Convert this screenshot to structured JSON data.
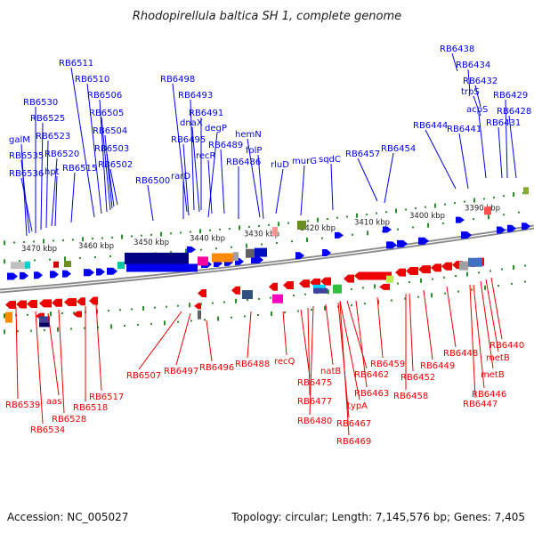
{
  "title": "Rhodopirellula baltica SH 1, complete genome",
  "footer": {
    "accession": "Accession: NC_005027",
    "summary": "Topology: circular; Length: 7,145,576 bp; Genes: 7,405"
  },
  "colors": {
    "forward": "#0000ee",
    "reverse": "#ee0000",
    "backbone": "#8a8a8a",
    "scale_tick": "#2e8b2e"
  },
  "scale_labels": [
    "3470 kbp",
    "3460 kbp",
    "3450 kbp",
    "3440 kbp",
    "3430 kbp",
    "3420 kbp",
    "3410 kbp",
    "3400 kbp",
    "3390 kbp"
  ],
  "forward_labels": [
    "galM",
    "RB6535",
    "RB6536",
    "RB6530",
    "RB6525",
    "RB6523",
    "RB6520",
    "hpt",
    "RB6515",
    "RB6511",
    "RB6510",
    "RB6506",
    "RB6505",
    "RB6504",
    "RB6503",
    "RB6502",
    "RB6500",
    "RB6498",
    "RB6493",
    "RB6491",
    "dnaX",
    "RB6495",
    "rarD",
    "degP",
    "recR",
    "RB6489",
    "RB6486",
    "hemN",
    "folP",
    "rluD",
    "murG",
    "sqdC",
    "RB6457",
    "RB6454",
    "RB6444",
    "RB6441",
    "RB6438",
    "RB6434",
    "RB6432",
    "trpS",
    "acpS",
    "RB6429",
    "RB6428",
    "RB6431"
  ],
  "reverse_labels": [
    "RB6539",
    "RB6534",
    "aas",
    "RB6528",
    "RB6518",
    "RB6517",
    "RB6507",
    "RB6497",
    "RB6496",
    "RB6488",
    "recQ",
    "RB6475",
    "RB6477",
    "RB6480",
    "natB",
    "RB6462",
    "typA",
    "RB6467",
    "RB6469",
    "RB6463",
    "RB6459",
    "RB6458",
    "RB6452",
    "RB6449",
    "RB6448",
    "RB6446",
    "RB6447",
    "metB",
    "metB",
    "RB6440"
  ]
}
